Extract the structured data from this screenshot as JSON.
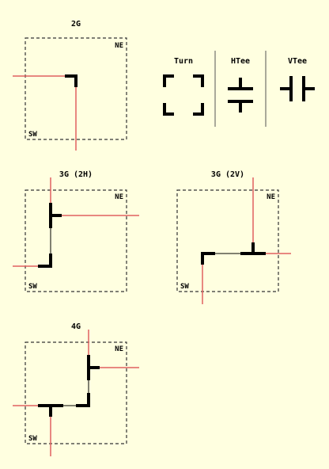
{
  "panels": {
    "p2g": {
      "title": "2G",
      "ne": "NE",
      "sw": "SW"
    },
    "p3g2h": {
      "title": "3G (2H)",
      "ne": "NE",
      "sw": "SW"
    },
    "p3g2v": {
      "title": "3G (2V)",
      "ne": "NE",
      "sw": "SW"
    },
    "p4g": {
      "title": "4G",
      "ne": "NE",
      "sw": "SW"
    }
  },
  "legend": {
    "turn": "Turn",
    "htee": "HTee",
    "vtee": "VTee"
  },
  "colors": {
    "background": "#ffffe0",
    "wire": "#e06060",
    "stroke": "#000000"
  }
}
